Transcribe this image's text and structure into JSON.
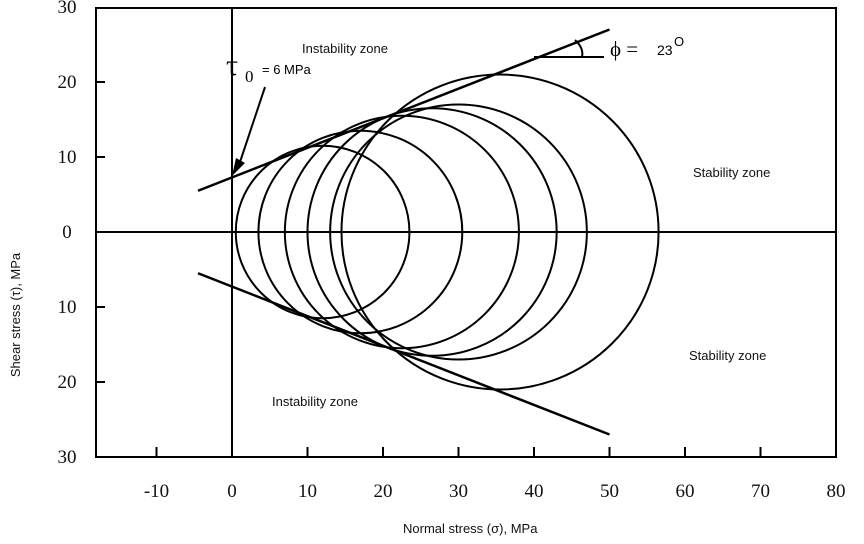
{
  "chart_data": {
    "type": "scatter",
    "title": "",
    "xlabel": "Normal stress (σ), MPa",
    "ylabel": "Shear stress (τ), MPa",
    "xlim": [
      -20,
      80
    ],
    "ylim": [
      -30,
      30
    ],
    "x_ticks": [
      "-10",
      "0",
      "10",
      "20",
      "30",
      "40",
      "50",
      "60",
      "70",
      "80"
    ],
    "x_tick_values": [
      -10,
      0,
      10,
      20,
      30,
      40,
      50,
      60,
      70,
      80
    ],
    "y_ticks": [
      "30",
      "20",
      "10",
      "0",
      "10",
      "20",
      "30"
    ],
    "y_tick_values": [
      30,
      20,
      10,
      0,
      -10,
      -20,
      -30
    ],
    "grid": false,
    "mohr_circles": [
      {
        "center": 12,
        "radius": 11.5
      },
      {
        "center": 17,
        "radius": 13.5
      },
      {
        "center": 22.5,
        "radius": 15.5
      },
      {
        "center": 26.5,
        "radius": 16.5
      },
      {
        "center": 30,
        "radius": 17
      },
      {
        "center": 35.5,
        "radius": 21
      }
    ],
    "failure_envelope": {
      "cohesion_tau0": 6,
      "friction_angle_deg": 23,
      "upper_line": {
        "x": [
          -4.5,
          50
        ],
        "y": [
          5.5,
          27
        ]
      },
      "lower_line": {
        "x": [
          -4.5,
          50
        ],
        "y": [
          -5.5,
          -27
        ]
      }
    },
    "annotations": {
      "instability_upper": "Instability zone",
      "instability_lower": "Instability zone",
      "stability_upper": "Stability zone",
      "stability_lower": "Stability zone",
      "tau0_symbol": "τ",
      "tau0_sub": "0",
      "tau0_value": "= 6 MPa",
      "phi_symbol": "ϕ =",
      "phi_value": "23",
      "phi_sup": "O"
    }
  }
}
